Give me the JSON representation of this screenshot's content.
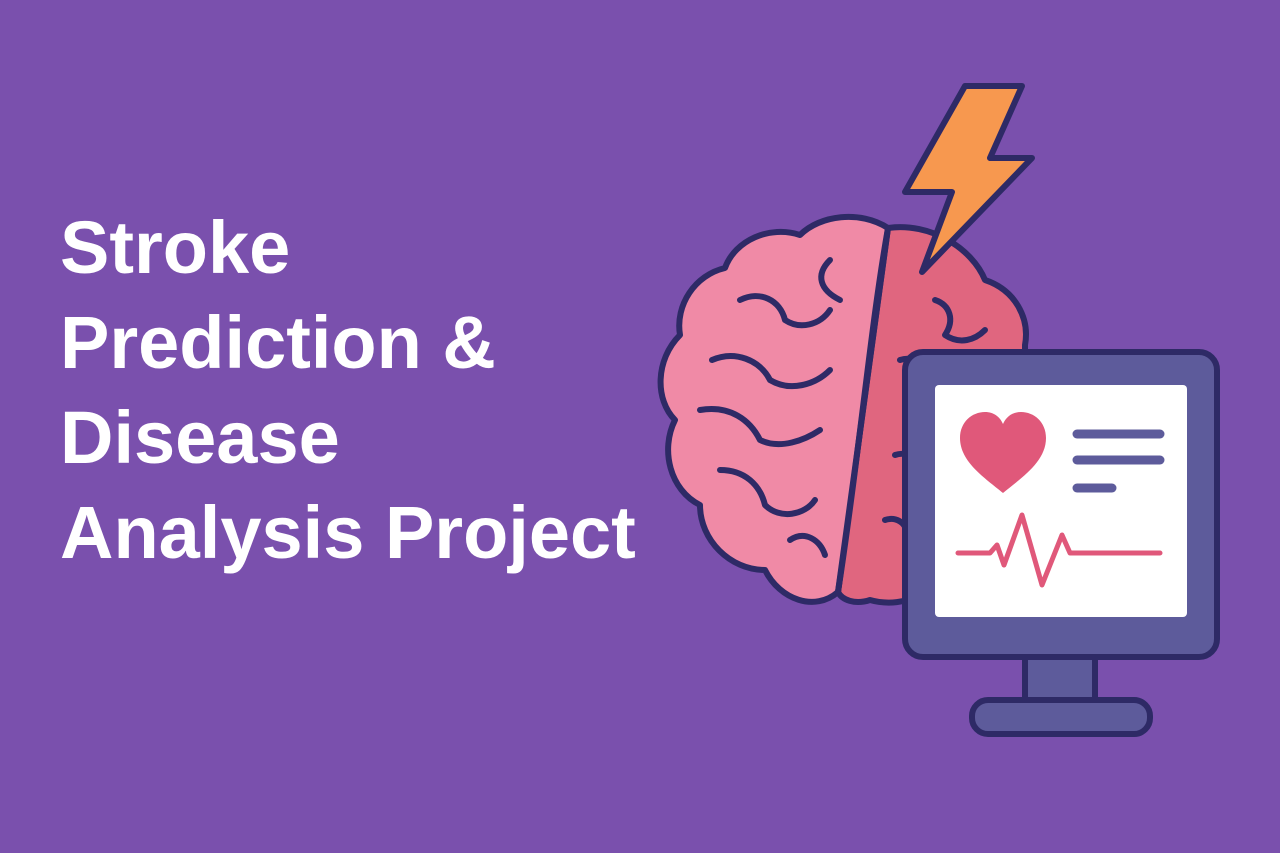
{
  "title_lines": [
    "Stroke",
    "Prediction &",
    "Disease",
    "Analysis Project"
  ],
  "colors": {
    "background": "#7a50ad",
    "title_text": "#ffffff",
    "brain_left": "#f08aa6",
    "brain_right": "#e0667f",
    "outline": "#2e2a66",
    "bolt": "#f7984f",
    "monitor_frame": "#5d5b9b",
    "screen": "#ffffff",
    "heart": "#e0587a",
    "text_lines": "#5d5b9b"
  },
  "icons": [
    "brain-icon",
    "lightning-bolt-icon",
    "monitor-icon",
    "heart-icon",
    "heartbeat-line-icon"
  ]
}
